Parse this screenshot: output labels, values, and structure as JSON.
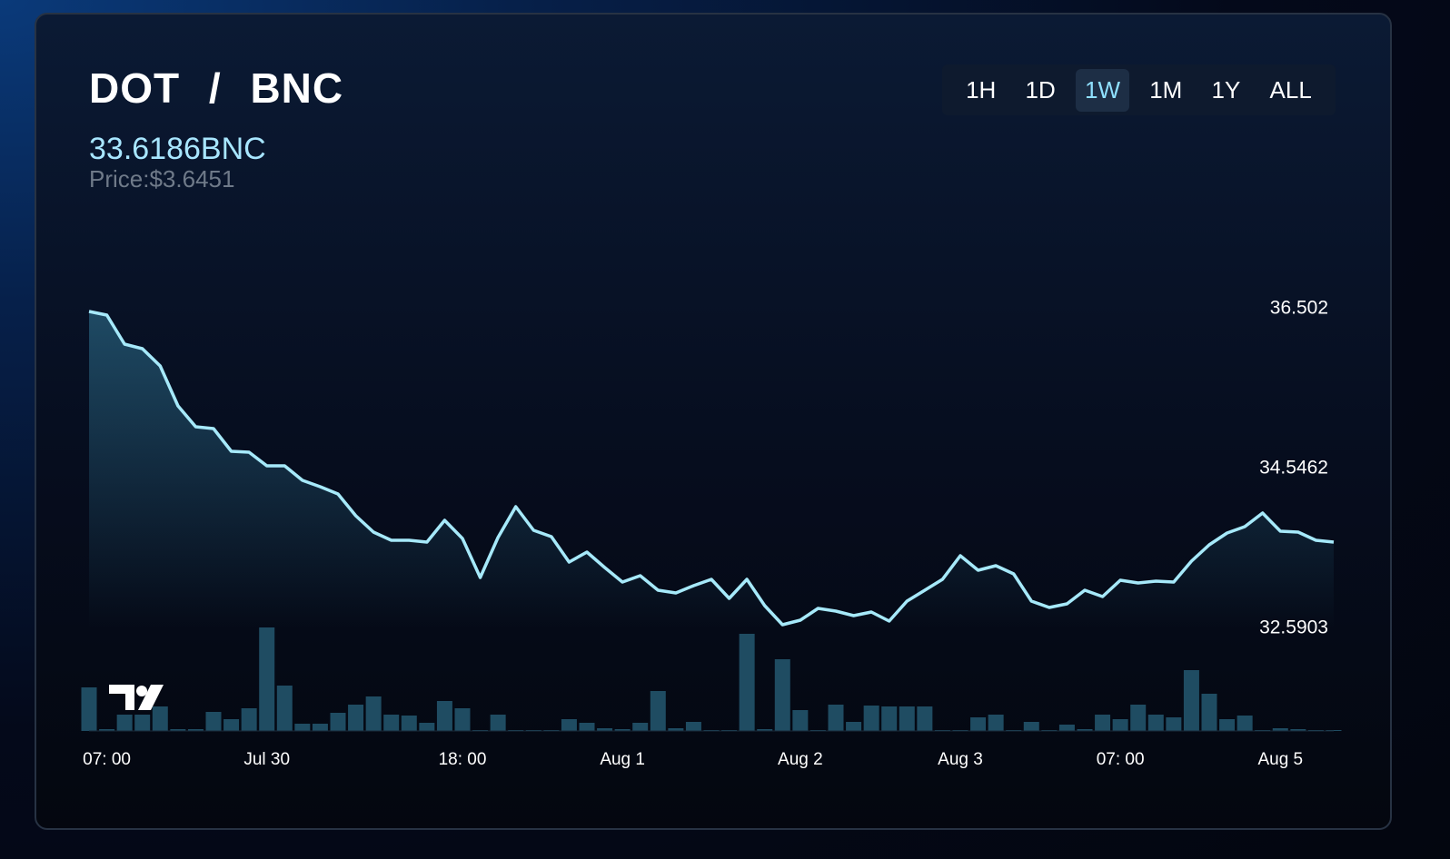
{
  "header": {
    "title": "DOT / BNC",
    "price_quote": "33.6186BNC",
    "price_usd": "Price:$3.6451",
    "timeframes": [
      "1H",
      "1D",
      "1W",
      "1M",
      "1Y",
      "ALL"
    ],
    "selected_timeframe": "1W"
  },
  "chart_data": {
    "type": "line",
    "categories": [
      null,
      "07: 00",
      null,
      null,
      null,
      null,
      null,
      null,
      null,
      null,
      "Jul 30",
      null,
      null,
      null,
      null,
      null,
      null,
      null,
      null,
      null,
      null,
      "18: 00",
      null,
      null,
      null,
      null,
      null,
      null,
      null,
      null,
      "Aug 1",
      null,
      null,
      null,
      null,
      null,
      null,
      null,
      null,
      null,
      "Aug 2",
      null,
      null,
      null,
      null,
      null,
      null,
      null,
      null,
      "Aug 3",
      null,
      null,
      null,
      null,
      null,
      null,
      null,
      null,
      "07: 00",
      null,
      null,
      null,
      null,
      null,
      null,
      null,
      null,
      "Aug 5",
      null,
      null,
      null
    ],
    "values": [
      36.469,
      36.424,
      36.069,
      36.013,
      35.802,
      35.313,
      35.057,
      35.035,
      34.757,
      34.746,
      34.579,
      34.579,
      34.402,
      34.324,
      34.235,
      33.968,
      33.768,
      33.668,
      33.668,
      33.646,
      33.913,
      33.69,
      33.213,
      33.702,
      34.079,
      33.791,
      33.713,
      33.401,
      33.524,
      33.335,
      33.157,
      33.235,
      33.057,
      33.024,
      33.113,
      33.19,
      32.957,
      33.19,
      32.868,
      32.635,
      32.69,
      32.835,
      32.801,
      32.746,
      32.79,
      32.679,
      32.924,
      33.057,
      33.19,
      33.479,
      33.301,
      33.357,
      33.257,
      32.924,
      32.846,
      32.89,
      33.057,
      32.979,
      33.179,
      33.146,
      33.168,
      33.157,
      33.413,
      33.613,
      33.757,
      33.835,
      34.002,
      33.779,
      33.768,
      33.668,
      33.646
    ],
    "color": "#a6e9fa",
    "volume": {
      "values": [
        48,
        2,
        18,
        18,
        27,
        2,
        2,
        21,
        13,
        25,
        114,
        50,
        8,
        8,
        20,
        29,
        38,
        18,
        17,
        9,
        33,
        25,
        1,
        18,
        1,
        1,
        1,
        13,
        9,
        3,
        2,
        9,
        44,
        3,
        10,
        1,
        1,
        107,
        2,
        79,
        23,
        1,
        29,
        10,
        28,
        27,
        27,
        27,
        1,
        1,
        15,
        18,
        1,
        10,
        1,
        7,
        2,
        18,
        13,
        29,
        18,
        15,
        67,
        41,
        13,
        17,
        1,
        3,
        2,
        1,
        1
      ],
      "color": "#1f4c62"
    },
    "ylim": [
      32.5903,
      36.502
    ],
    "yticks": [
      32.5903,
      34.5462,
      36.502
    ],
    "grid": false
  }
}
